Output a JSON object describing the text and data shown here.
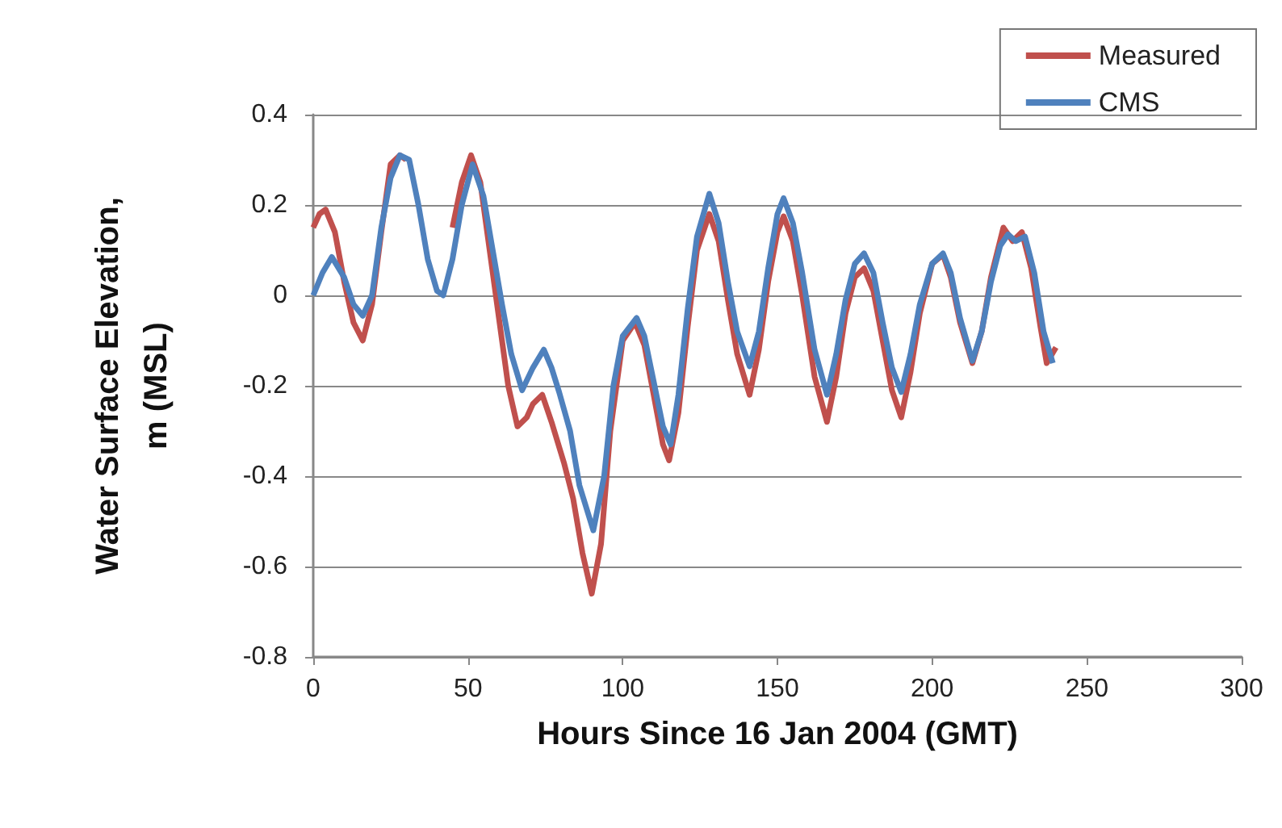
{
  "chart_data": {
    "type": "line",
    "xlabel": "Hours Since 16 Jan 2004 (GMT)",
    "ylabel": "Water Surface Elevation,\nm (MSL)",
    "xlim": [
      0,
      300
    ],
    "xticks": [
      0,
      50,
      100,
      150,
      200,
      250,
      300
    ],
    "ylim": [
      -0.8,
      0.4
    ],
    "yticks": [
      -0.8,
      -0.6,
      -0.4,
      -0.2,
      0,
      0.2,
      0.4
    ],
    "grid": "y",
    "legend": "top right",
    "marker": "none",
    "line_style": "solid",
    "series": [
      {
        "name": "Measured",
        "color": "#c0504d",
        "x": [
          0,
          2,
          4,
          7,
          10,
          13,
          16,
          19,
          22,
          25,
          28,
          30,
          33,
          45,
          48,
          51,
          54,
          57,
          60,
          63,
          66,
          69,
          71,
          74,
          77,
          81,
          84,
          87,
          90,
          93,
          96,
          100,
          104,
          107,
          110,
          113,
          115,
          118,
          121,
          124,
          128,
          131,
          134,
          137,
          141,
          144,
          147,
          150,
          152,
          155,
          158,
          162,
          166,
          169,
          172,
          175,
          178,
          181,
          184,
          187,
          190,
          193,
          196,
          200,
          203.5,
          206,
          209,
          213,
          216,
          219,
          223,
          226,
          229,
          232,
          235,
          237,
          240
        ],
        "values": [
          0.15,
          0.18,
          0.19,
          0.14,
          0.03,
          -0.06,
          -0.1,
          -0.02,
          0.14,
          0.29,
          0.31,
          0.3,
          null,
          0.15,
          0.25,
          0.31,
          0.25,
          0.1,
          -0.05,
          -0.2,
          -0.29,
          -0.27,
          -0.24,
          -0.22,
          -0.28,
          -0.37,
          -0.45,
          -0.57,
          -0.66,
          -0.55,
          -0.3,
          -0.1,
          -0.06,
          -0.11,
          -0.22,
          -0.33,
          -0.365,
          -0.26,
          -0.07,
          0.1,
          0.18,
          0.12,
          -0.01,
          -0.13,
          -0.22,
          -0.12,
          0.03,
          0.14,
          0.175,
          0.12,
          0.0,
          -0.18,
          -0.28,
          -0.18,
          -0.04,
          0.04,
          0.06,
          0.01,
          -0.1,
          -0.21,
          -0.27,
          -0.17,
          -0.04,
          0.07,
          0.09,
          0.04,
          -0.06,
          -0.15,
          -0.08,
          0.04,
          0.15,
          0.12,
          0.14,
          0.06,
          -0.07,
          -0.15,
          -0.115
        ]
      },
      {
        "name": "CMS",
        "color": "#4f81bd",
        "x": [
          0,
          3,
          6,
          10,
          13,
          16,
          19,
          22,
          25,
          28,
          31,
          34,
          37,
          40,
          42,
          45,
          48,
          51.5,
          55,
          58,
          61,
          64,
          67.5,
          71,
          74.5,
          77,
          79.5,
          83,
          86,
          90.5,
          94,
          97,
          100,
          104.5,
          107,
          110,
          113,
          115.5,
          118,
          121,
          124,
          128,
          131,
          134,
          137,
          141,
          144,
          147,
          150,
          152,
          155,
          158,
          162,
          166,
          169,
          172,
          175,
          178,
          181,
          184,
          187,
          190,
          193,
          196,
          200,
          203.5,
          206,
          209,
          213,
          216,
          219,
          222,
          224.5,
          227,
          230,
          233,
          236,
          239
        ],
        "values": [
          0,
          0.05,
          0.085,
          0.04,
          -0.02,
          -0.045,
          0.0,
          0.15,
          0.26,
          0.31,
          0.3,
          0.2,
          0.08,
          0.01,
          0.0,
          0.08,
          0.2,
          0.29,
          0.22,
          0.1,
          -0.02,
          -0.13,
          -0.21,
          -0.16,
          -0.12,
          -0.16,
          -0.215,
          -0.3,
          -0.42,
          -0.52,
          -0.4,
          -0.2,
          -0.09,
          -0.05,
          -0.09,
          -0.19,
          -0.29,
          -0.33,
          -0.22,
          -0.03,
          0.13,
          0.225,
          0.16,
          0.03,
          -0.08,
          -0.157,
          -0.08,
          0.06,
          0.18,
          0.215,
          0.16,
          0.05,
          -0.12,
          -0.22,
          -0.13,
          -0.01,
          0.07,
          0.093,
          0.05,
          -0.06,
          -0.16,
          -0.214,
          -0.13,
          -0.02,
          0.07,
          0.093,
          0.05,
          -0.05,
          -0.145,
          -0.08,
          0.03,
          0.11,
          0.135,
          0.12,
          0.13,
          0.05,
          -0.08,
          -0.15
        ]
      }
    ]
  }
}
